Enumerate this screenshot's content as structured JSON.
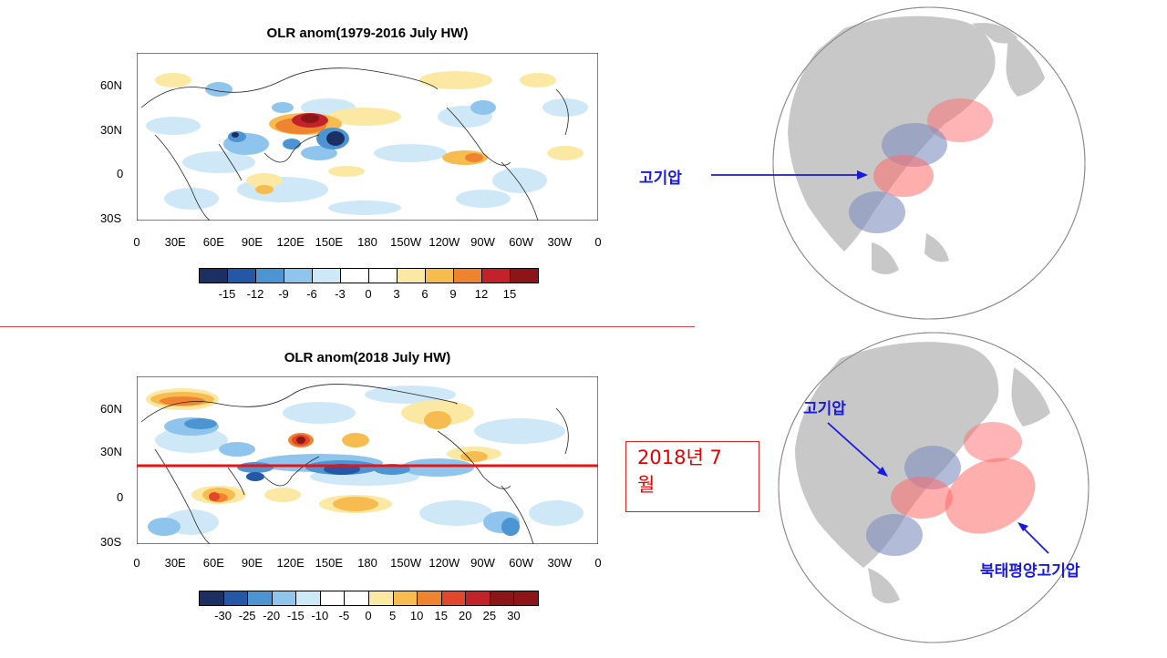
{
  "top_map": {
    "title": "OLR anom(1979-2016 July HW)",
    "lat_labels": [
      "60N",
      "30N",
      "0",
      "30S"
    ],
    "lon_labels": [
      "0",
      "30E",
      "60E",
      "90E",
      "120E",
      "150E",
      "180",
      "150W",
      "120W",
      "90W",
      "60W",
      "30W",
      "0"
    ],
    "colorbar_labels": [
      "-15",
      "-12",
      "-9",
      "-6",
      "-3",
      "0",
      "3",
      "6",
      "9",
      "12",
      "15"
    ]
  },
  "bottom_map": {
    "title": "OLR anom(2018 July HW)",
    "lat_labels": [
      "60N",
      "30N",
      "0",
      "30S"
    ],
    "lon_labels": [
      "0",
      "30E",
      "60E",
      "90E",
      "120E",
      "150E",
      "180",
      "150W",
      "120W",
      "90W",
      "60W",
      "30W",
      "0"
    ],
    "colorbar_labels": [
      "-30",
      "-25",
      "-20",
      "-15",
      "-10",
      "-5",
      "0",
      "5",
      "10",
      "15",
      "20",
      "25",
      "30"
    ],
    "red_line_latitude": "20N"
  },
  "colorbar_colors": [
    "#1b2f63",
    "#2457a6",
    "#4d94d2",
    "#8fc5ec",
    "#cde9f7",
    "#ffffff",
    "#ffffff",
    "#fbe8a3",
    "#f7bc4f",
    "#ef8430",
    "#e2462b",
    "#c3222a",
    "#8c1517"
  ],
  "annotation_box": {
    "line1": "2018년 7",
    "line2": "월"
  },
  "globe_top": {
    "label": "고기압"
  },
  "globe_bottom": {
    "label_high": "고기압",
    "label_nph": "북태평양고기압"
  },
  "colors": {
    "red_line": "#ee1111",
    "divider": "#dd4444",
    "label_blue": "#1a1adc",
    "globe_grey": "#c8c8c8",
    "ellipse_red": "#ff6b6b",
    "ellipse_blue": "#7f8fbf"
  }
}
